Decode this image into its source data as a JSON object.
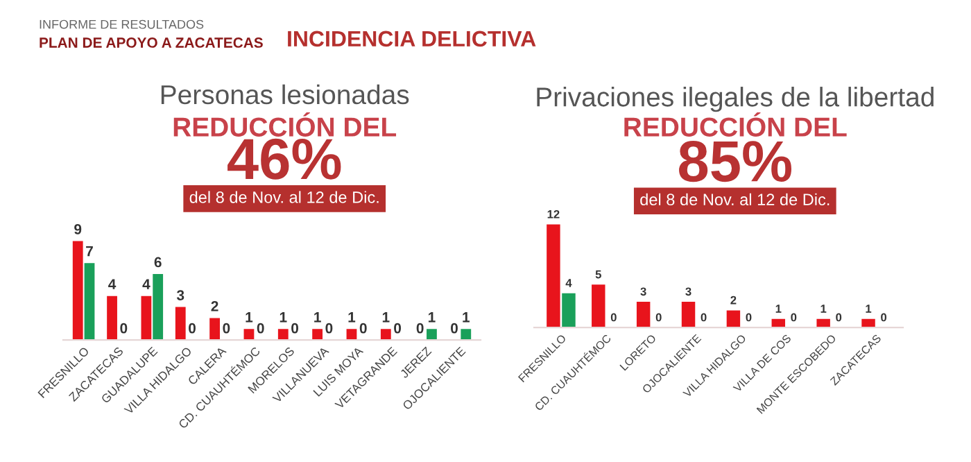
{
  "chart_data": [
    {
      "type": "bar",
      "title": "Personas lesionadas",
      "subtitle": "REDUCCIÓN DEL",
      "annotations": [
        "INFORME DE RESULTADOS",
        "PLAN DE APOYO A ZACATECAS",
        "INCIDENCIA DELICTIVA",
        "46%",
        "del 8 de Nov. al 12 de Dic."
      ],
      "categories": [
        "FRESNILLO",
        "ZACATECAS",
        "GUADALUPE",
        "VILLA HIDALGO",
        "CALERA",
        "CD. CUAUHTÉMOC",
        "MORELOS",
        "VILLANUEVA",
        "LUIS MOYA",
        "VETAGRANDE",
        "JEREZ",
        "OJOCALIENTE"
      ],
      "series": [
        {
          "color": "#e8141c",
          "values": [
            9,
            4,
            4,
            3,
            2,
            1,
            1,
            1,
            1,
            1,
            0,
            0
          ]
        },
        {
          "color": "#1aa05a",
          "values": [
            7,
            0,
            6,
            0,
            0,
            0,
            0,
            0,
            0,
            0,
            1,
            1
          ]
        }
      ],
      "data_labels": true,
      "grid": false,
      "legend": false,
      "tick_labels": "x"
    },
    {
      "type": "bar",
      "title": "Privaciones ilegales de la libertad",
      "subtitle": "REDUCCIÓN DEL",
      "annotations": [
        "85%",
        "del 8 de Nov. al 12 de Dic."
      ],
      "categories": [
        "FRESNILLO",
        "CD. CUAUHTÉMOC",
        "LORETO",
        "OJOCALIENTE",
        "VILLA HIDALGO",
        "VILLA DE COS",
        "MONTE ESCOBEDO",
        "ZACATECAS"
      ],
      "series": [
        {
          "color": "#e8141c",
          "values": [
            12,
            5,
            3,
            3,
            2,
            1,
            1,
            1
          ]
        },
        {
          "color": "#1aa05a",
          "values": [
            4,
            0,
            0,
            0,
            0,
            0,
            0,
            0
          ]
        }
      ],
      "data_labels": true,
      "grid": false,
      "legend": false,
      "tick_labels": "x"
    }
  ]
}
